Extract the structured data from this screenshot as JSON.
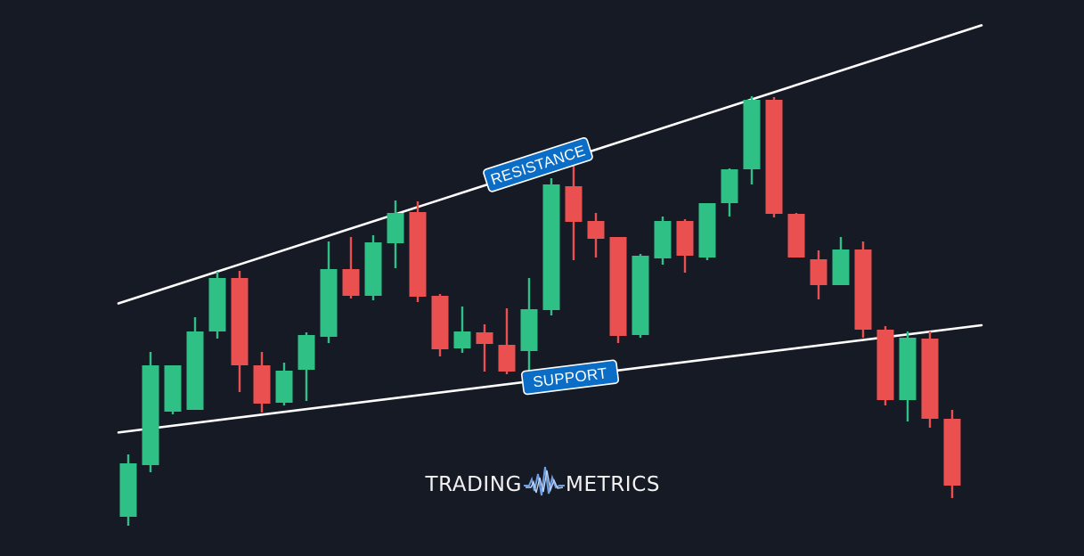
{
  "chart_data": {
    "type": "candlestick",
    "title": "",
    "xlabel": "",
    "ylabel": "",
    "ylim": [
      0,
      600
    ],
    "grid": false,
    "colors": {
      "up": "#2fc086",
      "down": "#e9504f",
      "background": "#161a25",
      "trendline": "#ffffff",
      "label_fill": "#0b6dc5"
    },
    "candles": [
      {
        "open": 40,
        "high": 110,
        "low": 30,
        "close": 100
      },
      {
        "open": 98,
        "high": 225,
        "low": 90,
        "close": 210
      },
      {
        "open": 158,
        "high": 210,
        "low": 155,
        "close": 210
      },
      {
        "open": 160,
        "high": 264,
        "low": 160,
        "close": 248
      },
      {
        "open": 248,
        "high": 315,
        "low": 240,
        "close": 308
      },
      {
        "open": 308,
        "high": 316,
        "low": 180,
        "close": 210
      },
      {
        "open": 210,
        "high": 225,
        "low": 157,
        "close": 167
      },
      {
        "open": 168,
        "high": 213,
        "low": 165,
        "close": 204
      },
      {
        "open": 205,
        "high": 247,
        "low": 170,
        "close": 244
      },
      {
        "open": 242,
        "high": 349,
        "low": 235,
        "close": 318
      },
      {
        "open": 318,
        "high": 354,
        "low": 285,
        "close": 288
      },
      {
        "open": 288,
        "high": 356,
        "low": 283,
        "close": 348
      },
      {
        "open": 347,
        "high": 395,
        "low": 319,
        "close": 381
      },
      {
        "open": 382,
        "high": 394,
        "low": 281,
        "close": 287
      },
      {
        "open": 288,
        "high": 290,
        "low": 220,
        "close": 228
      },
      {
        "open": 229,
        "high": 276,
        "low": 224,
        "close": 248
      },
      {
        "open": 247,
        "high": 256,
        "low": 203,
        "close": 234
      },
      {
        "open": 233,
        "high": 274,
        "low": 200,
        "close": 203
      },
      {
        "open": 226,
        "high": 308,
        "low": 199,
        "close": 273
      },
      {
        "open": 272,
        "high": 420,
        "low": 266,
        "close": 413
      },
      {
        "open": 411,
        "high": 447,
        "low": 328,
        "close": 371
      },
      {
        "open": 372,
        "high": 381,
        "low": 331,
        "close": 352
      },
      {
        "open": 354,
        "high": 354,
        "low": 235,
        "close": 243
      },
      {
        "open": 244,
        "high": 335,
        "low": 241,
        "close": 333
      },
      {
        "open": 330,
        "high": 377,
        "low": 323,
        "close": 372
      },
      {
        "open": 372,
        "high": 374,
        "low": 314,
        "close": 333
      },
      {
        "open": 331,
        "high": 392,
        "low": 328,
        "close": 392
      },
      {
        "open": 392,
        "high": 431,
        "low": 377,
        "close": 430
      },
      {
        "open": 430,
        "high": 512,
        "low": 413,
        "close": 508
      },
      {
        "open": 508,
        "high": 511,
        "low": 376,
        "close": 380
      },
      {
        "open": 380,
        "high": 381,
        "low": 331,
        "close": 331
      },
      {
        "open": 329,
        "high": 339,
        "low": 284,
        "close": 300
      },
      {
        "open": 300,
        "high": 354,
        "low": 300,
        "close": 340
      },
      {
        "open": 340,
        "high": 349,
        "low": 241,
        "close": 250
      },
      {
        "open": 250,
        "high": 254,
        "low": 165,
        "close": 171
      },
      {
        "open": 171,
        "high": 248,
        "low": 147,
        "close": 241
      },
      {
        "open": 240,
        "high": 248,
        "low": 140,
        "close": 150
      },
      {
        "open": 150,
        "high": 160,
        "low": 61,
        "close": 75
      }
    ],
    "trendlines": [
      {
        "name": "resistance",
        "label": "RESISTANCE",
        "start": {
          "index": 0,
          "value": 283
        },
        "end": {
          "index": 38,
          "value": 589
        }
      },
      {
        "name": "support",
        "label": "SUPPORT",
        "start": {
          "index": 0,
          "value": 136
        },
        "end": {
          "index": 38,
          "value": 254
        }
      }
    ]
  },
  "brand": {
    "left_text": "TRADING",
    "right_text": "METRICS",
    "colors": {
      "text": "#f2f2f2",
      "icon_primary": "#6f9fe0",
      "icon_secondary": "#bcd3f5"
    }
  }
}
